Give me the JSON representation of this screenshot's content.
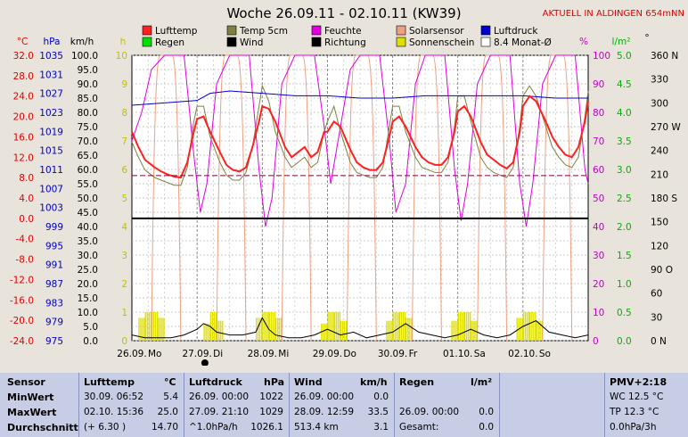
{
  "title": "Woche 26.09.11 - 02.10.11 (KW39)",
  "live_label": "AKTUELL IN ALDINGEN 654mNN",
  "chart_data": {
    "type": "line",
    "title": "Woche 26.09.11 - 02.10.11 (KW39)",
    "x_ticks": [
      "26.09.",
      "27.09.",
      "28.09.",
      "29.09.",
      "30.09.",
      "01.10.",
      "02.10."
    ],
    "x_days": [
      "Mo",
      "Di",
      "Mi",
      "Do",
      "Fr",
      "Sa",
      "So"
    ],
    "axes": {
      "temp": {
        "unit": "°C",
        "ticks": [
          "32.0",
          "28.0",
          "24.0",
          "20.0",
          "16.0",
          "12.0",
          "8.0",
          "4.0",
          "0.0",
          "-4.0",
          "-8.0",
          "-12.0",
          "-16.0",
          "-20.0",
          "-24.0"
        ],
        "range": [
          -24,
          32
        ],
        "color": "#e00000"
      },
      "pressure": {
        "unit": "hPa",
        "ticks": [
          "1035",
          "1031",
          "1027",
          "1023",
          "1019",
          "1015",
          "1011",
          "1007",
          "1003",
          "999",
          "995",
          "991",
          "987",
          "983",
          "979",
          "975"
        ],
        "range": [
          975,
          1035
        ],
        "color": "#0000c0"
      },
      "wind": {
        "unit": "km/h",
        "ticks": [
          "100.0",
          "95.0",
          "90.0",
          "85.0",
          "80.0",
          "75.0",
          "70.0",
          "65.0",
          "60.0",
          "55.0",
          "50.0",
          "45.0",
          "40.0",
          "35.0",
          "30.0",
          "25.0",
          "20.0",
          "15.0",
          "10.0",
          "5.0",
          "0.0"
        ],
        "range": [
          0,
          100
        ],
        "color": "#000000"
      },
      "sun": {
        "unit": "h",
        "ticks": [
          "10",
          "9",
          "8",
          "7",
          "6",
          "5",
          "4",
          "3",
          "2",
          "1",
          "0"
        ],
        "range": [
          0,
          10
        ],
        "color": "#c0c000"
      },
      "humidity": {
        "unit": "%",
        "ticks": [
          "100",
          "90",
          "80",
          "70",
          "60",
          "50",
          "40",
          "30",
          "20",
          "10",
          "0"
        ],
        "range": [
          0,
          100
        ],
        "color": "#c000c0"
      },
      "rain": {
        "unit": "l/m²",
        "ticks": [
          "5.0",
          "4.5",
          "4.0",
          "3.5",
          "3.0",
          "2.5",
          "2.0",
          "1.5",
          "1.0",
          "0.5",
          "0.0"
        ],
        "range": [
          0,
          5
        ],
        "color": "#00b000"
      },
      "direction": {
        "unit": "°",
        "ticks": [
          "360 N",
          "330",
          "300",
          "270 W",
          "240",
          "210",
          "180 S",
          "150",
          "120",
          "90 O",
          "60",
          "30",
          "0 N"
        ],
        "range": [
          0,
          360
        ],
        "color": "#000000"
      }
    },
    "legend": [
      {
        "name": "Lufttemp",
        "color": "#ff2020"
      },
      {
        "name": "Temp 5cm",
        "color": "#808040"
      },
      {
        "name": "Feuchte",
        "color": "#e000e0"
      },
      {
        "name": "Solarsensor",
        "color": "#f0a080"
      },
      {
        "name": "Luftdruck",
        "color": "#0000d0"
      },
      {
        "name": "Regen",
        "color": "#00e000"
      },
      {
        "name": "Wind",
        "color": "#000000"
      },
      {
        "name": "Richtung",
        "color": "#000000"
      },
      {
        "name": "Sonnenschein",
        "color": "#e0e000"
      },
      {
        "name": "8.4 Monat-Ø",
        "color": "#ffffff"
      }
    ],
    "reference_line_temp": 8.4,
    "series": [
      {
        "name": "Lufttemp",
        "axis": "temp",
        "color": "#ff2020",
        "x": [
          0,
          0.1,
          0.2,
          0.35,
          0.45,
          0.55,
          0.65,
          0.75,
          0.85,
          0.95,
          1.0,
          1.1,
          1.2,
          1.35,
          1.45,
          1.55,
          1.65,
          1.75,
          1.85,
          1.95,
          2.0,
          2.1,
          2.2,
          2.35,
          2.45,
          2.55,
          2.65,
          2.75,
          2.85,
          2.95,
          3.0,
          3.1,
          3.2,
          3.35,
          3.45,
          3.55,
          3.65,
          3.75,
          3.85,
          3.95,
          4.0,
          4.1,
          4.2,
          4.35,
          4.45,
          4.55,
          4.65,
          4.75,
          4.85,
          4.95,
          5.0,
          5.1,
          5.2,
          5.35,
          5.45,
          5.55,
          5.65,
          5.75,
          5.85,
          5.95,
          6.0,
          6.1,
          6.2,
          6.35,
          6.45,
          6.55,
          6.65,
          6.75,
          6.85,
          6.95,
          7.0
        ],
        "y": [
          17,
          14,
          11.5,
          10,
          9.2,
          8.6,
          8.2,
          8.0,
          11,
          17,
          19.5,
          20,
          17,
          13,
          10.5,
          9.5,
          9.2,
          10,
          14,
          19,
          22,
          21.5,
          19,
          14,
          12,
          13,
          14,
          12,
          13,
          17,
          17,
          19,
          18,
          13.5,
          11,
          10,
          9.5,
          9.5,
          11,
          16,
          19,
          20,
          18,
          14,
          12,
          11,
          10.5,
          10.5,
          12,
          17,
          21,
          22,
          20,
          15,
          12.5,
          11.5,
          10.5,
          9.8,
          11,
          17,
          22,
          24,
          23,
          19,
          16,
          14,
          12.5,
          12,
          14,
          19,
          23
        ]
      },
      {
        "name": "Temp 5cm",
        "axis": "temp",
        "color": "#808040",
        "x": [
          0,
          0.1,
          0.2,
          0.35,
          0.45,
          0.55,
          0.65,
          0.75,
          0.85,
          0.95,
          1.0,
          1.1,
          1.2,
          1.35,
          1.45,
          1.55,
          1.65,
          1.75,
          1.85,
          1.95,
          2.0,
          2.1,
          2.2,
          2.35,
          2.45,
          2.55,
          2.65,
          2.75,
          2.85,
          2.95,
          3.0,
          3.1,
          3.2,
          3.35,
          3.45,
          3.55,
          3.65,
          3.75,
          3.85,
          3.95,
          4.0,
          4.1,
          4.2,
          4.35,
          4.45,
          4.55,
          4.65,
          4.75,
          4.85,
          4.95,
          5.0,
          5.1,
          5.2,
          5.35,
          5.45,
          5.55,
          5.65,
          5.75,
          5.85,
          5.95,
          6.0,
          6.1,
          6.2,
          6.35,
          6.45,
          6.55,
          6.65,
          6.75,
          6.85,
          6.95,
          7.0
        ],
        "y": [
          15,
          12,
          9.5,
          8,
          7.5,
          7,
          6.5,
          6.5,
          10,
          19,
          22,
          22,
          16,
          11,
          8.5,
          7.5,
          7.5,
          9,
          14,
          22,
          26,
          23,
          17,
          12,
          10,
          11,
          12,
          10,
          11,
          17,
          19,
          22,
          17,
          11,
          9,
          8.5,
          8,
          8,
          10,
          18,
          22,
          22,
          17,
          12,
          10,
          9.5,
          9,
          9,
          11,
          18,
          24,
          24,
          19,
          12,
          10,
          9,
          8.5,
          8,
          10,
          18,
          24,
          26,
          24,
          18,
          14,
          12,
          10.5,
          10,
          12,
          20,
          25
        ]
      },
      {
        "name": "Luftdruck",
        "axis": "pressure",
        "color": "#0000d0",
        "x": [
          0,
          0.5,
          1.0,
          1.2,
          1.5,
          2.0,
          2.5,
          3.0,
          3.5,
          4.0,
          4.5,
          5.0,
          5.5,
          6.0,
          6.5,
          7.0
        ],
        "y": [
          1024.5,
          1025,
          1025.5,
          1027,
          1027.5,
          1027,
          1026.5,
          1026.5,
          1026,
          1026,
          1026.5,
          1026.5,
          1026.5,
          1026.5,
          1026,
          1026
        ]
      },
      {
        "name": "Feuchte",
        "axis": "humidity",
        "color": "#e000e0",
        "x": [
          0,
          0.15,
          0.3,
          0.5,
          0.8,
          0.95,
          1.05,
          1.15,
          1.3,
          1.5,
          1.8,
          1.95,
          2.05,
          2.15,
          2.3,
          2.5,
          2.8,
          2.95,
          3.05,
          3.2,
          3.35,
          3.5,
          3.8,
          3.95,
          4.05,
          4.2,
          4.35,
          4.5,
          4.8,
          4.95,
          5.05,
          5.15,
          5.3,
          5.5,
          5.8,
          5.95,
          6.05,
          6.15,
          6.3,
          6.5,
          6.8,
          6.95,
          7.0
        ],
        "y": [
          70,
          80,
          95,
          100,
          100,
          65,
          45,
          55,
          90,
          100,
          100,
          60,
          40,
          50,
          90,
          100,
          100,
          75,
          55,
          75,
          95,
          100,
          100,
          70,
          45,
          55,
          90,
          100,
          100,
          60,
          42,
          55,
          90,
          100,
          100,
          55,
          40,
          55,
          90,
          100,
          100,
          60,
          55
        ]
      },
      {
        "name": "Wind",
        "axis": "wind",
        "color": "#000000",
        "x": [
          0,
          0.2,
          0.4,
          0.6,
          0.8,
          1.0,
          1.1,
          1.2,
          1.3,
          1.5,
          1.7,
          1.9,
          2.0,
          2.1,
          2.2,
          2.4,
          2.6,
          2.8,
          3.0,
          3.2,
          3.4,
          3.6,
          3.8,
          4.0,
          4.2,
          4.4,
          4.6,
          4.8,
          5.0,
          5.2,
          5.4,
          5.6,
          5.8,
          6.0,
          6.2,
          6.4,
          6.6,
          6.8,
          7.0
        ],
        "y": [
          2,
          1,
          1,
          1,
          2,
          4,
          6,
          5,
          3,
          2,
          2,
          3,
          8,
          4,
          2,
          1,
          1,
          2,
          4,
          2,
          3,
          1,
          2,
          3,
          6,
          3,
          2,
          1,
          2,
          4,
          2,
          1,
          2,
          5,
          7,
          3,
          2,
          1,
          2
        ]
      },
      {
        "name": "Sonnenschein",
        "axis": "sun",
        "color": "#e0e000",
        "x": [
          0.15,
          0.25,
          0.35,
          0.45,
          1.15,
          1.25,
          1.35,
          1.95,
          2.05,
          2.15,
          2.25,
          2.95,
          3.05,
          3.15,
          3.25,
          3.95,
          4.05,
          4.15,
          4.25,
          4.95,
          5.05,
          5.15,
          5.25,
          5.95,
          6.05,
          6.15,
          6.25
        ],
        "y": [
          0.8,
          1.0,
          1.0,
          0.8,
          0.6,
          1.0,
          0.7,
          0.8,
          1.0,
          1.0,
          0.8,
          0.6,
          1.0,
          1.0,
          0.7,
          0.7,
          1.0,
          1.0,
          0.8,
          0.7,
          1.0,
          1.0,
          0.7,
          0.8,
          1.0,
          1.0,
          0.7
        ]
      }
    ]
  },
  "stats": {
    "sensor": {
      "header": "Sensor",
      "rows": [
        "MinWert",
        "MaxWert",
        "Durchschnitt"
      ]
    },
    "lufttemp": {
      "header": "Lufttemp",
      "unit": "°C",
      "rows": [
        [
          "30.09.  06:52",
          "5.4"
        ],
        [
          "02.10.  15:36",
          "25.0"
        ],
        [
          "(+ 6.30 )",
          "14.70"
        ]
      ]
    },
    "luftdruck": {
      "header": "Luftdruck",
      "unit": "hPa",
      "rows": [
        [
          "26.09.  00:00",
          "1022"
        ],
        [
          "27.09.  21:10",
          "1029"
        ],
        [
          "^1.0hPa/h",
          "1026.1"
        ]
      ]
    },
    "wind": {
      "header": "Wind",
      "unit": "km/h",
      "rows": [
        [
          "26.09.  00:00",
          "0.0"
        ],
        [
          "28.09.  12:59",
          "33.5"
        ],
        [
          "513.4 km",
          "3.1"
        ]
      ]
    },
    "regen": {
      "header": "Regen",
      "unit": "l/m²",
      "rows": [
        [
          "",
          ""
        ],
        [
          "26.09.  00:00",
          "0.0"
        ],
        [
          "Gesamt:",
          "0.0"
        ]
      ]
    },
    "pmv": {
      "header": "PMV+2:18",
      "rows": [
        "WC 12.5 °C",
        "TP 12.3 °C",
        "0.0hPa/3h"
      ]
    }
  }
}
